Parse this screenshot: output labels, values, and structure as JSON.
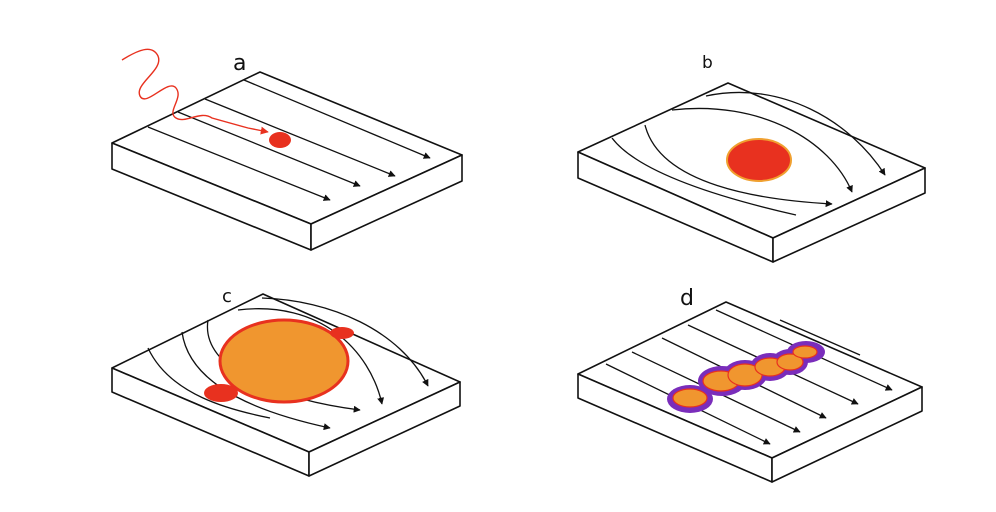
{
  "panels": [
    {
      "label": "a"
    },
    {
      "label": "b"
    },
    {
      "label": "c"
    },
    {
      "label": "d"
    }
  ],
  "colors": {
    "outline": "#111111",
    "spot": "#e8311f",
    "incoming_wave": "#e8311f",
    "halo": "#f0962f",
    "halo_edge": "#e8311f",
    "purple_rim": "#7a2dbb",
    "background": "#ffffff"
  }
}
